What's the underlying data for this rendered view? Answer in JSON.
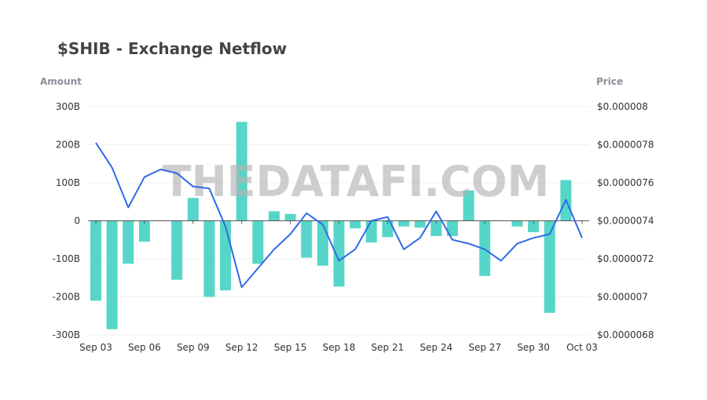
{
  "chart_data": {
    "type": "bar+line",
    "title": "$SHIB - Exchange Netflow",
    "ylabel_left": "Amount",
    "ylabel_right": "Price",
    "watermark": "THEDATAFI.COM",
    "x_tick_labels": [
      "Sep 03",
      "Sep 06",
      "Sep 09",
      "Sep 12",
      "Sep 15",
      "Sep 18",
      "Sep 21",
      "Sep 24",
      "Sep 27",
      "Sep 30",
      "Oct 03"
    ],
    "y_left_ticks": [
      "300B",
      "200B",
      "100B",
      "0",
      "-100B",
      "-200B",
      "-300B"
    ],
    "y_right_ticks": [
      "$0.000008",
      "$0.0000078",
      "$0.0000076",
      "$0.0000074",
      "$0.0000072",
      "$0.000007",
      "$0.0000068"
    ],
    "ylim_left": [
      -300,
      300
    ],
    "ylim_right": [
      6.8e-06,
      8e-06
    ],
    "y_unit": "B",
    "categories": [
      "Sep 03",
      "Sep 04",
      "Sep 05",
      "Sep 06",
      "Sep 07",
      "Sep 08",
      "Sep 09",
      "Sep 10",
      "Sep 11",
      "Sep 12",
      "Sep 13",
      "Sep 14",
      "Sep 15",
      "Sep 16",
      "Sep 17",
      "Sep 18",
      "Sep 19",
      "Sep 20",
      "Sep 21",
      "Sep 22",
      "Sep 23",
      "Sep 24",
      "Sep 25",
      "Sep 26",
      "Sep 27",
      "Sep 28",
      "Sep 29",
      "Sep 30",
      "Oct 01",
      "Oct 02",
      "Oct 03"
    ],
    "series": [
      {
        "type": "bar",
        "axis": "left",
        "color": "#56d6c8",
        "values": [
          -210,
          -285,
          -113,
          -55,
          0,
          -155,
          60,
          -200,
          -183,
          260,
          -113,
          25,
          18,
          -97,
          -118,
          -173,
          -20,
          -57,
          -43,
          -15,
          -18,
          -40,
          -40,
          80,
          -145,
          0,
          -15,
          -30,
          -242,
          107,
          0
        ]
      },
      {
        "type": "line",
        "axis": "right",
        "color": "#2f6be6",
        "values": [
          7.81e-06,
          7.68e-06,
          7.47e-06,
          7.63e-06,
          7.67e-06,
          7.65e-06,
          7.58e-06,
          7.57e-06,
          7.37e-06,
          7.05e-06,
          7.15e-06,
          7.25e-06,
          7.33e-06,
          7.44e-06,
          7.38e-06,
          7.19e-06,
          7.25e-06,
          7.4e-06,
          7.42e-06,
          7.25e-06,
          7.31e-06,
          7.45e-06,
          7.3e-06,
          7.28e-06,
          7.25e-06,
          7.19e-06,
          7.28e-06,
          7.31e-06,
          7.33e-06,
          7.51e-06,
          7.31e-06
        ]
      }
    ],
    "grid": true,
    "legend": "none"
  }
}
